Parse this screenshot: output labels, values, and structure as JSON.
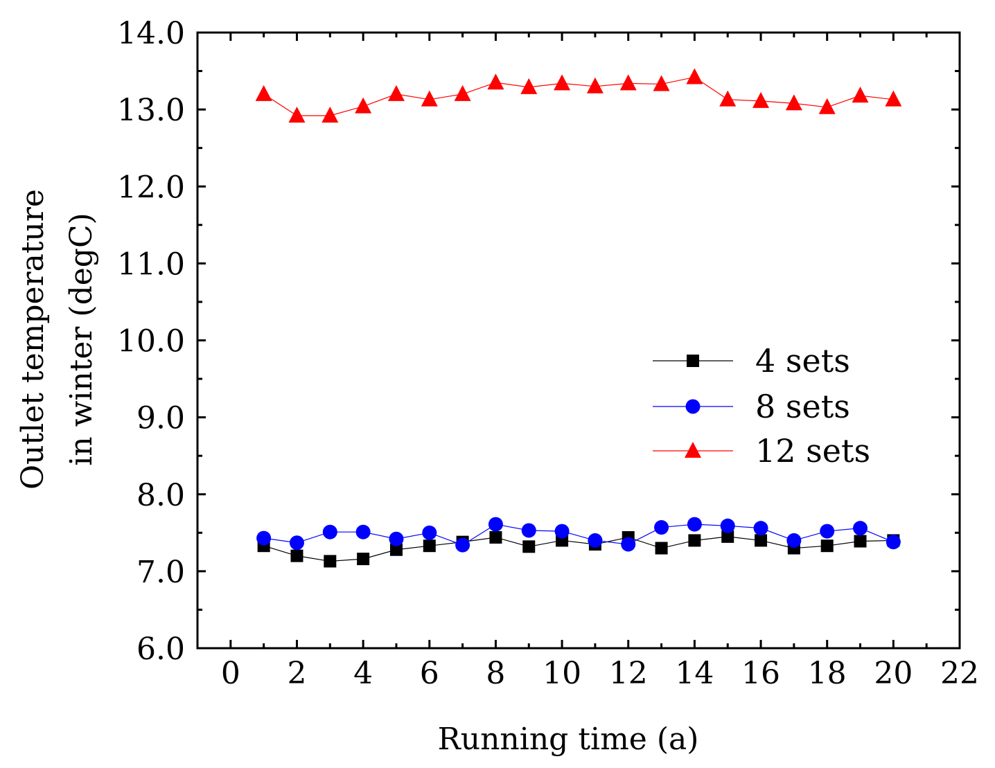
{
  "chart_data": {
    "type": "line",
    "title": "",
    "xlabel": "Running time (a)",
    "ylabel_lines": [
      "Outlet temperature",
      "in winter (degC)"
    ],
    "xlim": [
      -1,
      22
    ],
    "ylim": [
      6.0,
      14.0
    ],
    "x_ticks": [
      "0",
      "2",
      "4",
      "6",
      "8",
      "10",
      "12",
      "14",
      "16",
      "18",
      "20",
      "22"
    ],
    "y_ticks": [
      "6.0",
      "7.0",
      "8.0",
      "9.0",
      "10.0",
      "11.0",
      "12.0",
      "13.0",
      "14.0"
    ],
    "x": [
      1,
      2,
      3,
      4,
      5,
      6,
      7,
      8,
      9,
      10,
      11,
      12,
      13,
      14,
      15,
      16,
      17,
      18,
      19,
      20
    ],
    "legend_position": "center-right",
    "series": [
      {
        "name": "4 sets",
        "color": "#000000",
        "marker": "square",
        "values": [
          7.33,
          7.2,
          7.13,
          7.16,
          7.28,
          7.33,
          7.38,
          7.44,
          7.32,
          7.4,
          7.35,
          7.44,
          7.3,
          7.4,
          7.45,
          7.4,
          7.3,
          7.33,
          7.39,
          7.4
        ]
      },
      {
        "name": "8 sets",
        "color": "#0000ff",
        "marker": "circle",
        "values": [
          7.43,
          7.37,
          7.51,
          7.51,
          7.42,
          7.5,
          7.34,
          7.61,
          7.53,
          7.52,
          7.4,
          7.35,
          7.57,
          7.61,
          7.59,
          7.56,
          7.4,
          7.52,
          7.56,
          7.38
        ]
      },
      {
        "name": "12 sets",
        "color": "#ff0000",
        "marker": "triangle",
        "values": [
          13.2,
          12.92,
          12.92,
          13.04,
          13.2,
          13.13,
          13.2,
          13.35,
          13.29,
          13.34,
          13.3,
          13.34,
          13.33,
          13.42,
          13.13,
          13.11,
          13.08,
          13.03,
          13.18,
          13.13
        ]
      }
    ]
  }
}
